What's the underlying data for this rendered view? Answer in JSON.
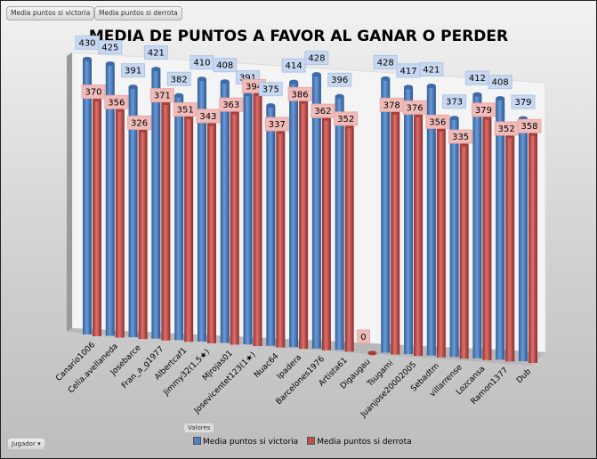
{
  "buttons": {
    "victoria": "Media puntos si victoria",
    "derrota": "Media puntos si derrota",
    "valores": "Valores",
    "jugador": "Jugador",
    "dropdown_icon": "▾"
  },
  "colors": {
    "victoria": "#4f81bd",
    "derrota": "#c0504d"
  },
  "chart_data": {
    "type": "bar",
    "title": "MEDIA DE PUNTOS A FAVOR AL GANAR O PERDER",
    "categories": [
      "Canario1006",
      "Celia.avellaneda",
      "Josebarce",
      "Fran_a_g1977",
      "Albertcaf1",
      "Jimmy32(1,5★)",
      "Mjrojas01",
      "Josevicentet123(1★)",
      "Nuac64",
      "Ipadera",
      "Barcelones1976",
      "Artista61",
      "Digaugau",
      "Tsugami",
      "Juanjose20002005",
      "Sebadtm",
      "villarrense",
      "Lozcansa",
      "Ramon1377",
      "Dub"
    ],
    "series": [
      {
        "name": "Media puntos si victoria",
        "values": [
          430,
          425,
          391,
          421,
          382,
          410,
          408,
          391,
          375,
          414,
          428,
          396,
          null,
          428,
          417,
          421,
          373,
          412,
          408,
          379
        ]
      },
      {
        "name": "Media puntos si derrota",
        "values": [
          370,
          356,
          326,
          371,
          351,
          343,
          363,
          394,
          337,
          386,
          362,
          352,
          0,
          378,
          376,
          356,
          335,
          379,
          352,
          358
        ]
      }
    ],
    "legend": "bottom",
    "xlabel": "",
    "ylabel": ""
  }
}
